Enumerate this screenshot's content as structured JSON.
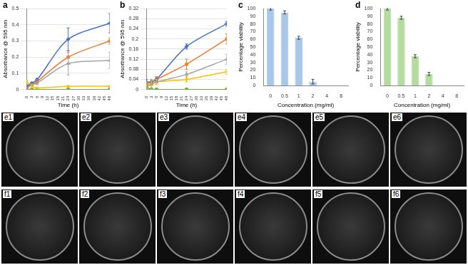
{
  "chart_data": [
    {
      "panel": "a",
      "type": "line",
      "x_label": "Time (h)",
      "y_label": "Absorbance @ 595 nm",
      "x": [
        0,
        3,
        6,
        24,
        48
      ],
      "xlim": [
        0,
        48
      ],
      "xticks": [
        0,
        3,
        6,
        9,
        12,
        15,
        18,
        21,
        24,
        27,
        30,
        33,
        36,
        39,
        42,
        45,
        48
      ],
      "ylim": [
        0,
        0.5
      ],
      "yticks": [
        0,
        0.1,
        0.2,
        0.3,
        0.4,
        0.5
      ],
      "grid": true,
      "series": [
        {
          "color": "#4472c4",
          "marker": "diamond",
          "values": [
            0.02,
            0.04,
            0.06,
            0.31,
            0.41
          ],
          "errors": [
            0.01,
            0.005,
            0.01,
            0.07,
            0.06
          ]
        },
        {
          "color": "#ed7d31",
          "marker": "square",
          "values": [
            0.01,
            0.03,
            0.05,
            0.2,
            0.3
          ],
          "errors": [
            0.01,
            0.005,
            0.01,
            0.04,
            0.02
          ]
        },
        {
          "color": "#a5a5a5",
          "marker": "triangle",
          "values": [
            0.02,
            0.03,
            0.04,
            0.16,
            0.18
          ],
          "errors": [
            0.01,
            0.005,
            0.01,
            0.07,
            0.05
          ]
        },
        {
          "color": "#ffc000",
          "marker": "x",
          "values": [
            0.05,
            0.02,
            0.01,
            0.02,
            0.02
          ],
          "errors": [
            0.01,
            0.01,
            0.005,
            0.005,
            0.005
          ]
        },
        {
          "color": "#70ad47",
          "marker": "circle",
          "values": [
            0,
            0,
            0,
            0,
            0
          ],
          "errors": [
            0,
            0,
            0,
            0,
            0
          ]
        }
      ]
    },
    {
      "panel": "b",
      "type": "line",
      "x_label": "Time (h)",
      "y_label": "Absorbance @ 595 nm",
      "x": [
        0,
        3,
        6,
        24,
        48
      ],
      "xlim": [
        0,
        48
      ],
      "xticks": [
        0,
        3,
        6,
        9,
        12,
        15,
        18,
        21,
        24,
        27,
        30,
        33,
        36,
        39,
        42,
        45,
        48
      ],
      "ylim": [
        0,
        0.32
      ],
      "yticks": [
        0,
        0.04,
        0.08,
        0.12,
        0.16,
        0.2,
        0.24,
        0.28,
        0.32
      ],
      "grid": true,
      "series": [
        {
          "color": "#4472c4",
          "marker": "diamond",
          "values": [
            0.03,
            0.03,
            0.04,
            0.17,
            0.26
          ],
          "errors": [
            0.01,
            0.01,
            0.01,
            0.01,
            0.01
          ]
        },
        {
          "color": "#ed7d31",
          "marker": "square",
          "values": [
            0.02,
            0.03,
            0.04,
            0.1,
            0.2
          ],
          "errors": [
            0.01,
            0.01,
            0.01,
            0.02,
            0.02
          ]
        },
        {
          "color": "#a5a5a5",
          "marker": "triangle",
          "values": [
            0.01,
            0.02,
            0.03,
            0.06,
            0.12
          ],
          "errors": [
            0.01,
            0.02,
            0.01,
            0.01,
            0.02
          ]
        },
        {
          "color": "#ffc000",
          "marker": "x",
          "values": [
            0.02,
            0.02,
            0.03,
            0.04,
            0.07
          ],
          "errors": [
            0.01,
            0.01,
            0.01,
            0.01,
            0.01
          ]
        },
        {
          "color": "#70ad47",
          "marker": "circle",
          "values": [
            0.01,
            0,
            0,
            0,
            0
          ],
          "errors": [
            0.005,
            0,
            0,
            0,
            0
          ]
        }
      ]
    },
    {
      "panel": "c",
      "type": "bar",
      "x_label": "Concentration (mg/ml)",
      "y_label": "Percentage viability",
      "categories": [
        "0",
        "0.5",
        "1",
        "2",
        "4",
        "8"
      ],
      "values": [
        100,
        95,
        62,
        5,
        0,
        0
      ],
      "errors": [
        2,
        2,
        2,
        3,
        0,
        0
      ],
      "color": "#a9c8e8",
      "ylim": [
        0,
        100
      ],
      "yticks": [
        0,
        10,
        20,
        30,
        40,
        50,
        60,
        70,
        80,
        90,
        100
      ],
      "grid": false
    },
    {
      "panel": "d",
      "type": "bar",
      "x_label": "Concentration (mg/ml)",
      "y_label": "Percentage viability",
      "categories": [
        "0",
        "0.5",
        "1",
        "2",
        "4",
        "8"
      ],
      "values": [
        100,
        88,
        38,
        15,
        0,
        0
      ],
      "errors": [
        2,
        2,
        2,
        2,
        0,
        0
      ],
      "color": "#b5dca0",
      "ylim": [
        0,
        100
      ],
      "yticks": [
        0,
        10,
        20,
        30,
        40,
        50,
        60,
        70,
        80,
        90,
        100
      ],
      "grid": false
    }
  ],
  "plates": {
    "e": [
      "e1",
      "e2",
      "e3",
      "e4",
      "e5",
      "e6"
    ],
    "f": [
      "f1",
      "f2",
      "f3",
      "f4",
      "f5",
      "f6"
    ]
  }
}
